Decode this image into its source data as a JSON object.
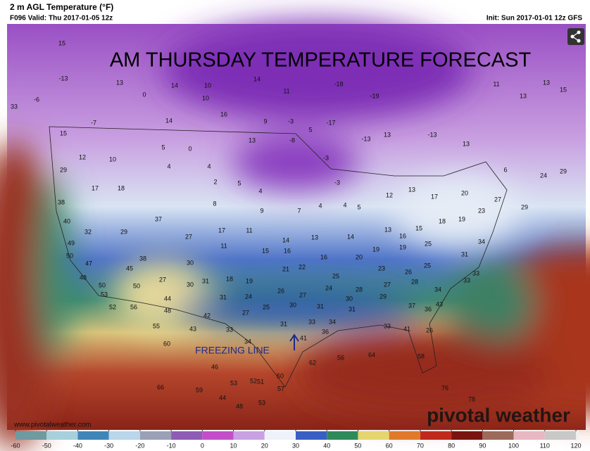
{
  "header": {
    "title": "2 m AGL Temperature (°F)",
    "valid": "F096 Valid: Thu 2017-01-05 12z",
    "init": "Init: Sun 2017-01-01 12z GFS"
  },
  "overlay_title": "AM THURSDAY TEMPERATURE FORECAST",
  "annotation": "FREEZING LINE",
  "watermark": "pivotal weather",
  "website": "www.pivotalweather.com",
  "colorbar": {
    "ticks": [
      -60,
      -50,
      -40,
      -30,
      -20,
      -10,
      0,
      10,
      20,
      30,
      40,
      50,
      60,
      70,
      80,
      90,
      100,
      110,
      120
    ]
  },
  "map_labels": [
    15,
    -13,
    -6,
    33,
    -7,
    13,
    0,
    14,
    14,
    10,
    10,
    16,
    9,
    14,
    11,
    -18,
    -19,
    -17,
    -3,
    5,
    13,
    -8,
    -3,
    -13,
    13,
    -13,
    13,
    11,
    13,
    13,
    15,
    6,
    24,
    29,
    15,
    12,
    29,
    10,
    17,
    18,
    5,
    0,
    4,
    4,
    2,
    5,
    4,
    8,
    9,
    7,
    4,
    -3,
    4,
    5,
    12,
    13,
    17,
    20,
    27,
    29,
    23,
    18,
    19,
    38,
    40,
    32,
    29,
    37,
    27,
    17,
    11,
    14,
    13,
    14,
    13,
    16,
    15,
    49,
    50,
    47,
    48,
    45,
    38,
    30,
    11,
    15,
    16,
    16,
    20,
    19,
    19,
    25,
    31,
    34,
    31,
    18,
    19,
    21,
    22,
    25,
    23,
    26,
    25,
    33,
    53,
    50,
    50,
    27,
    30,
    31,
    24,
    26,
    27,
    24,
    28,
    27,
    28,
    34,
    33,
    52,
    56,
    44,
    48,
    42,
    27,
    25,
    30,
    31,
    30,
    29,
    37,
    43,
    36,
    55,
    43,
    33,
    31,
    33,
    34,
    31,
    33,
    41,
    26,
    60,
    46,
    34,
    41,
    36,
    62,
    56,
    64,
    58,
    52,
    53,
    51,
    50,
    57,
    44,
    48,
    66,
    59,
    53,
    76,
    78
  ]
}
